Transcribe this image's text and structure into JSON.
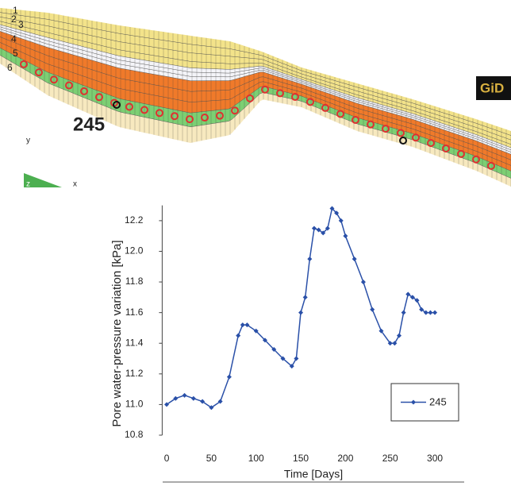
{
  "diagram": {
    "layer_labels": [
      "1",
      "2",
      "3",
      "4",
      "5",
      "6"
    ],
    "node_label": "245",
    "axis_labels": [
      "y",
      "z",
      "x"
    ],
    "logo": "GiD"
  },
  "chart_data": {
    "type": "line",
    "x": [
      0,
      10,
      20,
      30,
      40,
      50,
      60,
      70,
      80,
      85,
      90,
      100,
      110,
      120,
      130,
      140,
      145,
      150,
      155,
      160,
      165,
      170,
      175,
      180,
      185,
      190,
      195,
      200,
      210,
      220,
      230,
      240,
      250,
      255,
      260,
      265,
      270,
      275,
      280,
      285,
      290,
      295,
      300
    ],
    "series": [
      {
        "name": "245",
        "color": "#2a50a8",
        "values": [
          11.0,
          11.04,
          11.06,
          11.04,
          11.02,
          10.98,
          11.02,
          11.18,
          11.45,
          11.52,
          11.52,
          11.48,
          11.42,
          11.36,
          11.3,
          11.25,
          11.3,
          11.6,
          11.7,
          11.95,
          12.15,
          12.14,
          12.12,
          12.15,
          12.28,
          12.25,
          12.2,
          12.1,
          11.95,
          11.8,
          11.62,
          11.48,
          11.4,
          11.4,
          11.45,
          11.6,
          11.72,
          11.7,
          11.68,
          11.62,
          11.6,
          11.6,
          11.6
        ]
      }
    ],
    "xlabel": "Time [Days]",
    "ylabel": "Pore water-pressure variation [kPa]",
    "xlim": [
      -5,
      320
    ],
    "ylim": [
      10.8,
      12.3
    ],
    "xticks": [
      0,
      50,
      100,
      150,
      200,
      250,
      300
    ],
    "yticks": [
      10.8,
      {
        "value": 11,
        "label": "11.0"
      },
      11.2,
      11.4,
      11.6,
      11.8,
      {
        "value": 12,
        "label": "12.0"
      },
      12.2
    ],
    "legend": "lower right"
  }
}
